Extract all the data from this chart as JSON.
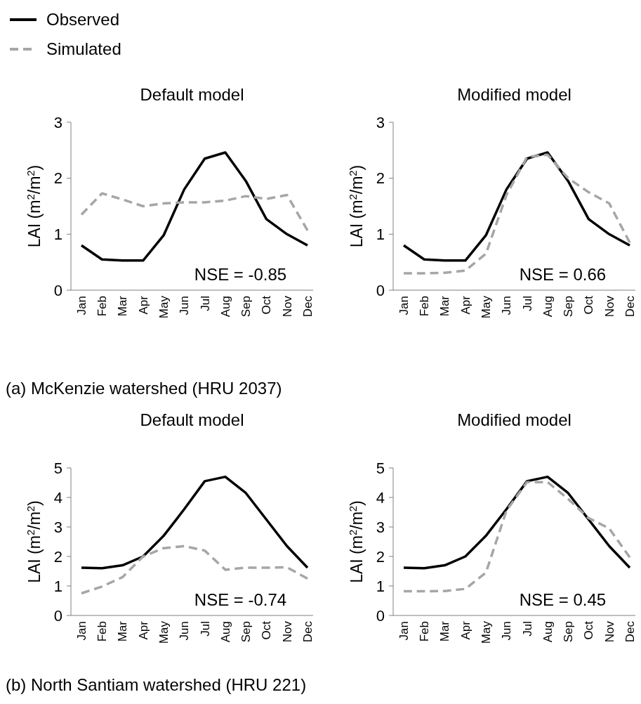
{
  "chart_data": [
    {
      "type": "line",
      "title": "Default model",
      "ylabel": "LAI (m$^{2}$/m$^{2}$)",
      "categories": [
        "Jan",
        "Feb",
        "Mar",
        "Apr",
        "May",
        "Jun",
        "Jul",
        "Aug",
        "Sep",
        "Oct",
        "Nov",
        "Dec"
      ],
      "ylim": [
        0,
        3
      ],
      "yticks": [
        0,
        1,
        2,
        3
      ],
      "grid": false,
      "legend": "top left",
      "marker": "none",
      "series": [
        {
          "name": "Observed",
          "color": "#000000",
          "line_style": "solid",
          "values": [
            0.8,
            0.55,
            0.53,
            0.53,
            0.98,
            1.8,
            2.35,
            2.46,
            1.95,
            1.27,
            1.0,
            0.8
          ]
        },
        {
          "name": "Simulated",
          "color": "#a6a6a6",
          "line_style": "dashed",
          "values": [
            1.35,
            1.73,
            1.62,
            1.5,
            1.55,
            1.57,
            1.57,
            1.6,
            1.68,
            1.63,
            1.7,
            1.07
          ]
        }
      ],
      "annotations": [
        "NSE = -0.85",
        "(a) McKenzie watershed (HRU 2037)"
      ]
    },
    {
      "type": "line",
      "title": "Modified model",
      "ylabel": "LAI (m$^{2}$/m$^{2}$)",
      "categories": [
        "Jan",
        "Feb",
        "Mar",
        "Apr",
        "May",
        "Jun",
        "Jul",
        "Aug",
        "Sep",
        "Oct",
        "Nov",
        "Dec"
      ],
      "ylim": [
        0,
        3
      ],
      "yticks": [
        0,
        1,
        2,
        3
      ],
      "grid": false,
      "marker": "none",
      "series": [
        {
          "color": "#000000",
          "line_style": "solid",
          "values": [
            0.8,
            0.55,
            0.53,
            0.53,
            0.98,
            1.8,
            2.35,
            2.46,
            1.95,
            1.27,
            1.0,
            0.8
          ]
        },
        {
          "color": "#a6a6a6",
          "line_style": "dashed",
          "values": [
            0.3,
            0.3,
            0.31,
            0.35,
            0.65,
            1.7,
            2.38,
            2.42,
            2.0,
            1.75,
            1.55,
            0.85
          ]
        }
      ],
      "annotations": [
        "NSE = 0.66"
      ]
    },
    {
      "type": "line",
      "title": "Default model",
      "ylabel": "LAI (m$^{2}$/m$^{2}$)",
      "categories": [
        "Jan",
        "Feb",
        "Mar",
        "Apr",
        "May",
        "Jun",
        "Jul",
        "Aug",
        "Sep",
        "Oct",
        "Nov",
        "Dec"
      ],
      "ylim": [
        0,
        5
      ],
      "yticks": [
        0,
        1,
        2,
        3,
        4,
        5
      ],
      "grid": false,
      "marker": "none",
      "series": [
        {
          "color": "#000000",
          "line_style": "solid",
          "values": [
            1.62,
            1.6,
            1.7,
            2.0,
            2.7,
            3.6,
            4.55,
            4.7,
            4.15,
            3.25,
            2.35,
            1.62
          ]
        },
        {
          "color": "#a6a6a6",
          "line_style": "dashed",
          "values": [
            0.75,
            0.98,
            1.3,
            2.0,
            2.28,
            2.35,
            2.2,
            1.55,
            1.62,
            1.62,
            1.63,
            1.25
          ]
        }
      ],
      "annotations": [
        "NSE = -0.74",
        "(b) North Santiam watershed (HRU 221)"
      ]
    },
    {
      "type": "line",
      "title": "Modified model",
      "ylabel": "LAI (m$^{2}$/m$^{2}$)",
      "categories": [
        "Jan",
        "Feb",
        "Mar",
        "Apr",
        "May",
        "Jun",
        "Jul",
        "Aug",
        "Sep",
        "Oct",
        "Nov",
        "Dec"
      ],
      "ylim": [
        0,
        5
      ],
      "yticks": [
        0,
        1,
        2,
        3,
        4,
        5
      ],
      "grid": false,
      "marker": "none",
      "series": [
        {
          "color": "#000000",
          "line_style": "solid",
          "values": [
            1.62,
            1.6,
            1.7,
            2.0,
            2.7,
            3.6,
            4.55,
            4.7,
            4.15,
            3.25,
            2.35,
            1.62
          ]
        },
        {
          "color": "#a6a6a6",
          "line_style": "dashed",
          "values": [
            0.82,
            0.82,
            0.83,
            0.9,
            1.45,
            3.55,
            4.52,
            4.52,
            3.95,
            3.3,
            2.95,
            1.97
          ]
        }
      ],
      "annotations": [
        "NSE = 0.45"
      ]
    }
  ]
}
